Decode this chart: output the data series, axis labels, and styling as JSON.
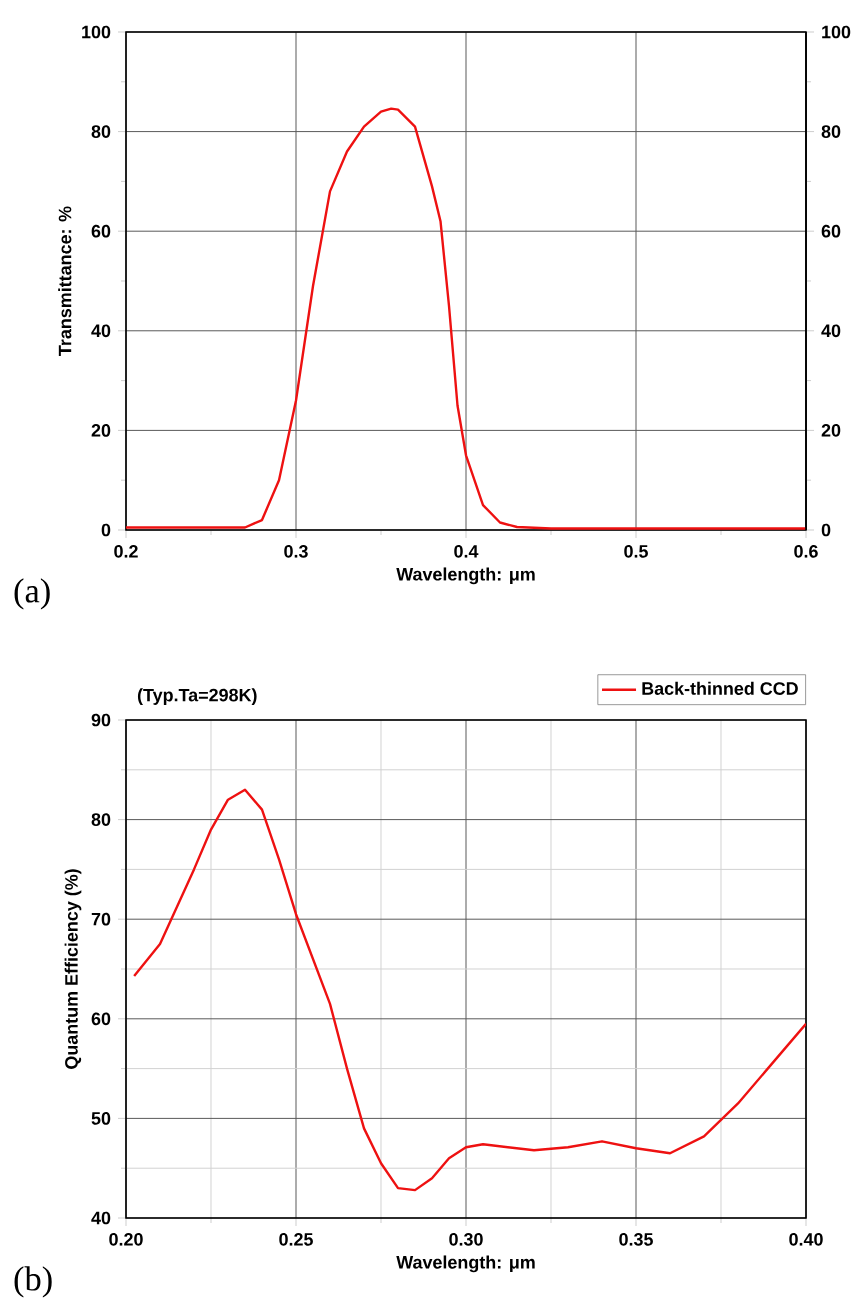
{
  "chart_data": [
    {
      "type": "line",
      "xlabel": "Wavelength: μm",
      "ylabel": "Transmittance: %",
      "x": [
        0.2,
        0.27,
        0.28,
        0.29,
        0.3,
        0.31,
        0.32,
        0.33,
        0.34,
        0.35,
        0.356,
        0.36,
        0.37,
        0.38,
        0.385,
        0.39,
        0.395,
        0.4,
        0.41,
        0.42,
        0.43,
        0.45,
        0.6
      ],
      "series": [
        {
          "color": "#ee1111",
          "values": [
            0.5,
            0.5,
            2,
            10,
            26,
            49,
            68,
            76,
            81,
            84,
            84.6,
            84.4,
            81,
            69,
            62,
            45,
            25,
            15,
            5,
            1.5,
            0.6,
            0.3,
            0.3
          ]
        }
      ],
      "xlim": [
        0.2,
        0.6
      ],
      "ylim": [
        0,
        100
      ],
      "y2lim": [
        0,
        100
      ],
      "xticks": [
        0.2,
        0.3,
        0.4,
        0.5,
        0.6
      ],
      "yticks": [
        0,
        20,
        40,
        60,
        80,
        100
      ],
      "y2ticks": [
        0,
        20,
        40,
        60,
        80,
        100
      ],
      "grid": true,
      "legend": false,
      "line_style": "solid",
      "marker": "none",
      "annotations": [
        "(a)"
      ]
    },
    {
      "type": "line",
      "xlabel": "Wavelength: μm",
      "ylabel": "Quantum Efficiency (%)",
      "x": [
        0.2024,
        0.21,
        0.22,
        0.225,
        0.23,
        0.235,
        0.24,
        0.245,
        0.25,
        0.255,
        0.26,
        0.265,
        0.27,
        0.275,
        0.28,
        0.285,
        0.29,
        0.295,
        0.3,
        0.305,
        0.31,
        0.32,
        0.33,
        0.34,
        0.35,
        0.36,
        0.37,
        0.38,
        0.39,
        0.4
      ],
      "series": [
        {
          "name": "Back-thinned CCD",
          "color": "#ee1111",
          "values": [
            64.3,
            67.5,
            75,
            79,
            82,
            83,
            81,
            76,
            70.5,
            66,
            61.5,
            55,
            49,
            45.5,
            43,
            42.8,
            44,
            46,
            47.1,
            47.4,
            47.2,
            46.8,
            47.1,
            47.7,
            47,
            46.5,
            48.2,
            51.5,
            55.5,
            59.5
          ]
        }
      ],
      "xlim": [
        0.2,
        0.4
      ],
      "ylim": [
        40,
        90
      ],
      "xticks": [
        {
          "value": 0.2,
          "label": "0.20"
        },
        {
          "value": 0.25,
          "label": "0.25"
        },
        {
          "value": 0.3,
          "label": "0.30"
        },
        {
          "value": 0.35,
          "label": "0.35"
        },
        {
          "value": 0.4,
          "label": "0.40"
        }
      ],
      "yticks": [
        40,
        50,
        60,
        70,
        80,
        90
      ],
      "grid": true,
      "legend": "top right",
      "line_style": "solid",
      "marker": "none",
      "annotations": [
        "(Typ.Ta=298K)",
        "(b)"
      ]
    }
  ]
}
